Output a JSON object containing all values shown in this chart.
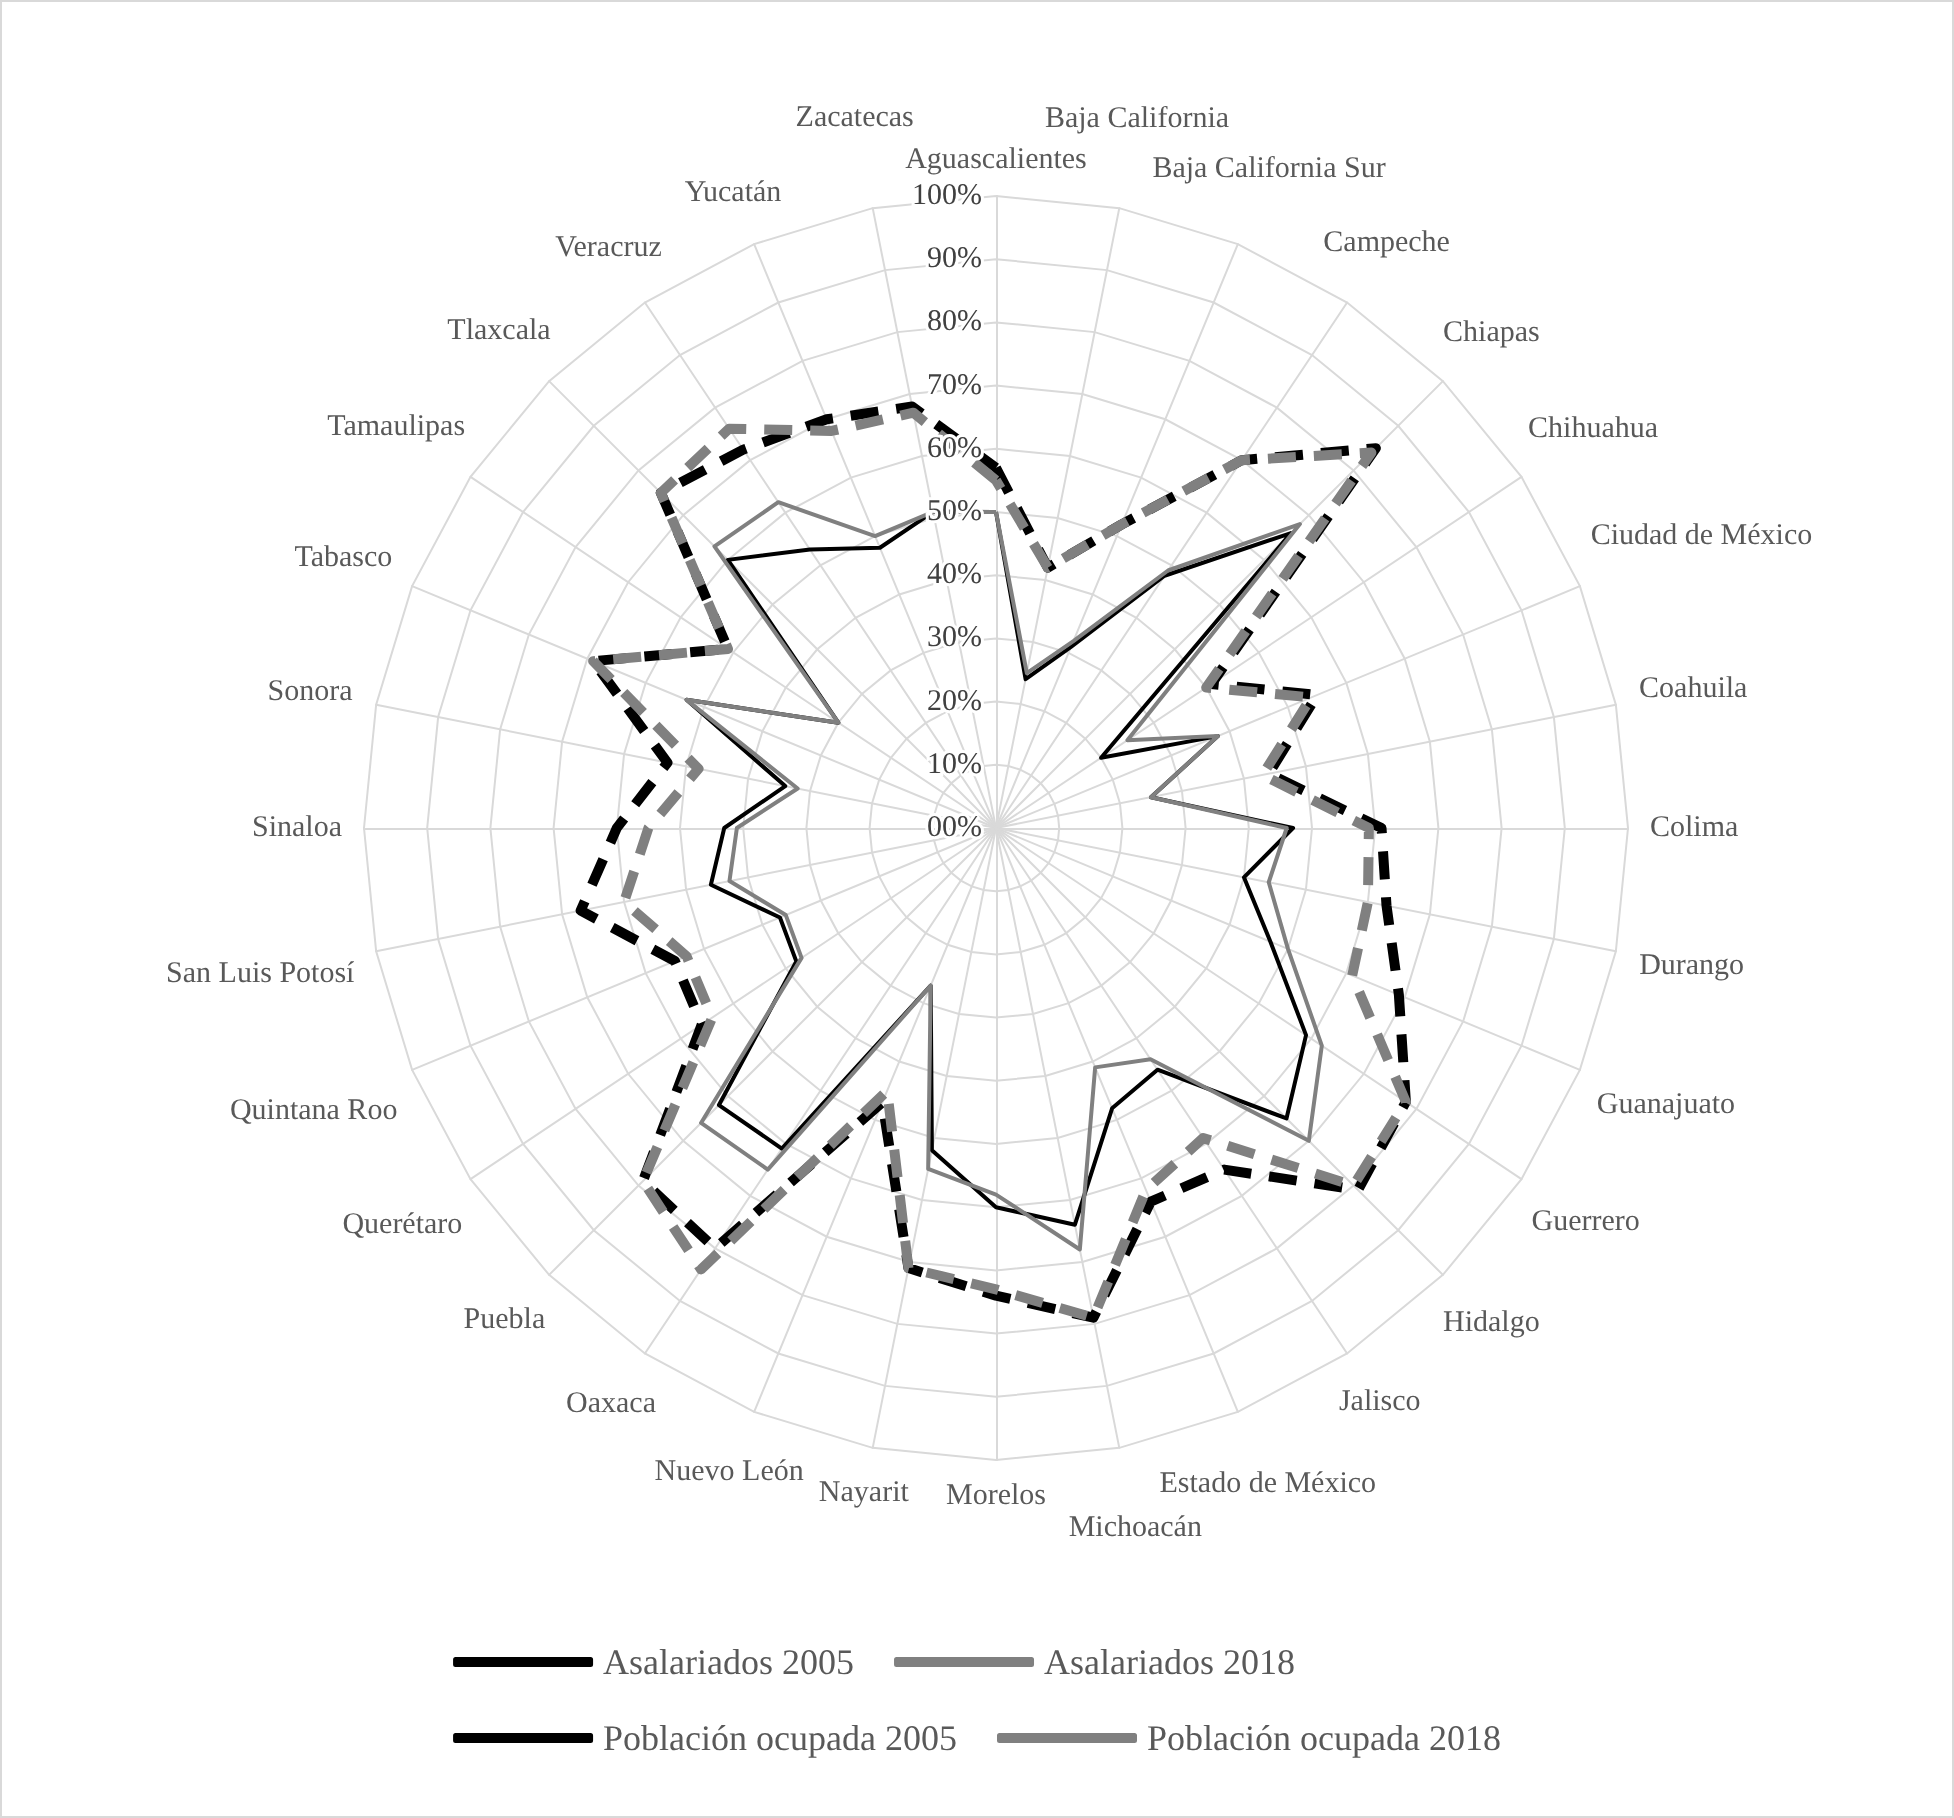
{
  "chart_data": {
    "type": "radar",
    "categories": [
      "Aguascalientes",
      "Baja California",
      "Baja California Sur",
      "Campeche",
      "Chiapas",
      "Chihuahua",
      "Ciudad de México",
      "Coahuila",
      "Colima",
      "Durango",
      "Guanajuato",
      "Guerrero",
      "Hidalgo",
      "Jalisco",
      "Estado de México",
      "Michoacán",
      "Morelos",
      "Nayarit",
      "Nuevo León",
      "Oaxaca",
      "Puebla",
      "Querétaro",
      "Quintana Roo",
      "San Luis Potosí",
      "Sinaloa",
      "Sonora",
      "Tabasco",
      "Tamaulipas",
      "Tlaxcala",
      "Veracruz",
      "Yucatán",
      "Zacatecas"
    ],
    "series": [
      {
        "name": "Asalariados 2005",
        "color": "#000000",
        "line_style": "solid",
        "values": [
          50,
          24,
          31,
          48,
          66,
          20,
          38,
          25,
          47,
          40,
          47,
          59,
          65,
          46,
          48,
          64,
          60,
          52,
          27,
          61,
          62,
          38,
          37,
          46,
          43,
          34,
          53,
          30,
          60,
          53,
          48,
          51
        ]
      },
      {
        "name": "Asalariados 2018",
        "color": "#808080",
        "line_style": "solid",
        "values": [
          50,
          25,
          32,
          49,
          68,
          25,
          38,
          25,
          46,
          44,
          50,
          62,
          70,
          44,
          41,
          68,
          58,
          55,
          27,
          65,
          66,
          37,
          36,
          43,
          41,
          32,
          53,
          30,
          63,
          62,
          50,
          51
        ]
      },
      {
        "name": "Población ocupada 2005",
        "color": "#000000",
        "line_style": "dashed",
        "values": [
          57,
          42,
          52,
          70,
          85,
          41,
          55,
          44,
          61,
          63,
          69,
          78,
          81,
          65,
          64,
          79,
          74,
          71,
          47,
          80,
          79,
          56,
          55,
          67,
          60,
          53,
          69,
          51,
          75,
          72,
          70,
          68
        ]
      },
      {
        "name": "Población ocupada 2018",
        "color": "#808080",
        "line_style": "dashed",
        "values": [
          55,
          42,
          52,
          70,
          84,
          40,
          54,
          43,
          59,
          60,
          61,
          78,
          80,
          59,
          62,
          79,
          73,
          71,
          45,
          84,
          79,
          54,
          53,
          60,
          55,
          48,
          69,
          51,
          75,
          76,
          68,
          67
        ]
      }
    ],
    "ylim": [
      0,
      100
    ],
    "yticks": [
      {
        "value": 0,
        "label": "00%"
      },
      {
        "value": 10,
        "label": "10%"
      },
      {
        "value": 20,
        "label": "20%"
      },
      {
        "value": 30,
        "label": "30%"
      },
      {
        "value": 40,
        "label": "40%"
      },
      {
        "value": 50,
        "label": "50%"
      },
      {
        "value": 60,
        "label": "60%"
      },
      {
        "value": 70,
        "label": "70%"
      },
      {
        "value": 80,
        "label": "80%"
      },
      {
        "value": 90,
        "label": "90%"
      },
      {
        "value": 100,
        "label": "100%"
      }
    ],
    "grid": true,
    "legend": "bottom",
    "marker": "none"
  }
}
